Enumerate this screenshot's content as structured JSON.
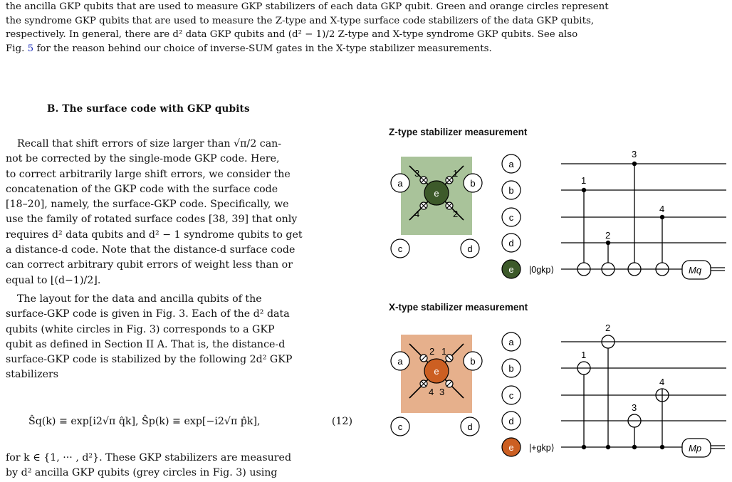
{
  "caption": {
    "line1": "the ancilla GKP qubits that are used to measure GKP stabilizers of each data GKP qubit. Green and orange circles represent",
    "line2": "the syndrome GKP qubits that are used to measure the Z-type and X-type surface code stabilizers of the data GKP qubits,",
    "line3": "respectively. In general, there are d² data GKP qubits and (d² − 1)/2 Z-type and X-type syndrome GKP qubits. See also",
    "line4_pre": "Fig. ",
    "line4_link": "5",
    "line4_post": " for the reason behind our choice of inverse-SUM gates in the X-type stabilizer measurements."
  },
  "section": {
    "title": "B.   The surface code with GKP qubits"
  },
  "paragraphs": {
    "p1": [
      "Recall that shift errors of size larger than √π/2 can-",
      "not be corrected by the single-mode GKP code. Here,",
      "to correct arbitrarily large shift errors, we consider the",
      "concatenation of the GKP code with the surface code",
      "[18–20], namely, the surface-GKP code. Specifically, we",
      "use the family of rotated surface codes [38, 39] that only",
      "requires d² data qubits and d² − 1 syndrome qubits to get",
      "a distance-d code. Note that the distance-d surface code",
      "can correct arbitrary qubit errors of weight less than or",
      "equal to ⌊(d−1)/2⌋."
    ],
    "p2": [
      "The layout for the data and ancilla qubits of the",
      "surface-GKP code is given in Fig. 3. Each of the d² data",
      "qubits (white circles in Fig. 3) corresponds to a GKP",
      "qubit as defined in Section II A. That is, the distance-d",
      "surface-GKP code is stabilized by the following 2d² GKP",
      "stabilizers"
    ],
    "equation": "Ŝq(k) ≡ exp[i2√π q̂k],    Ŝp(k) ≡ exp[−i2√π p̂k],",
    "equation_number": "(12)",
    "p3": [
      "for k ∈ {1, ··· , d²}. These GKP stabilizers are measured",
      "by d² ancilla GKP qubits (grey circles in Fig. 3) using"
    ]
  },
  "figure": {
    "z_title": "Z-type stabilizer measurement",
    "x_title": "X-type stabilizer measurement",
    "qubit_labels": [
      "a",
      "b",
      "c",
      "d",
      "e"
    ],
    "z_order": [
      "1",
      "2",
      "3",
      "4"
    ],
    "x_order": [
      "1",
      "2",
      "3",
      "4"
    ],
    "z_syndrome_state": "|0gkp⟩",
    "x_syndrome_state": "|+gkp⟩",
    "z_measure": "Mq",
    "x_measure": "Mp",
    "colors": {
      "z_fill": "#a9c39a",
      "z_center": "#3d5a2a",
      "x_fill": "#e6b08c",
      "x_center": "#cc5f22"
    }
  }
}
